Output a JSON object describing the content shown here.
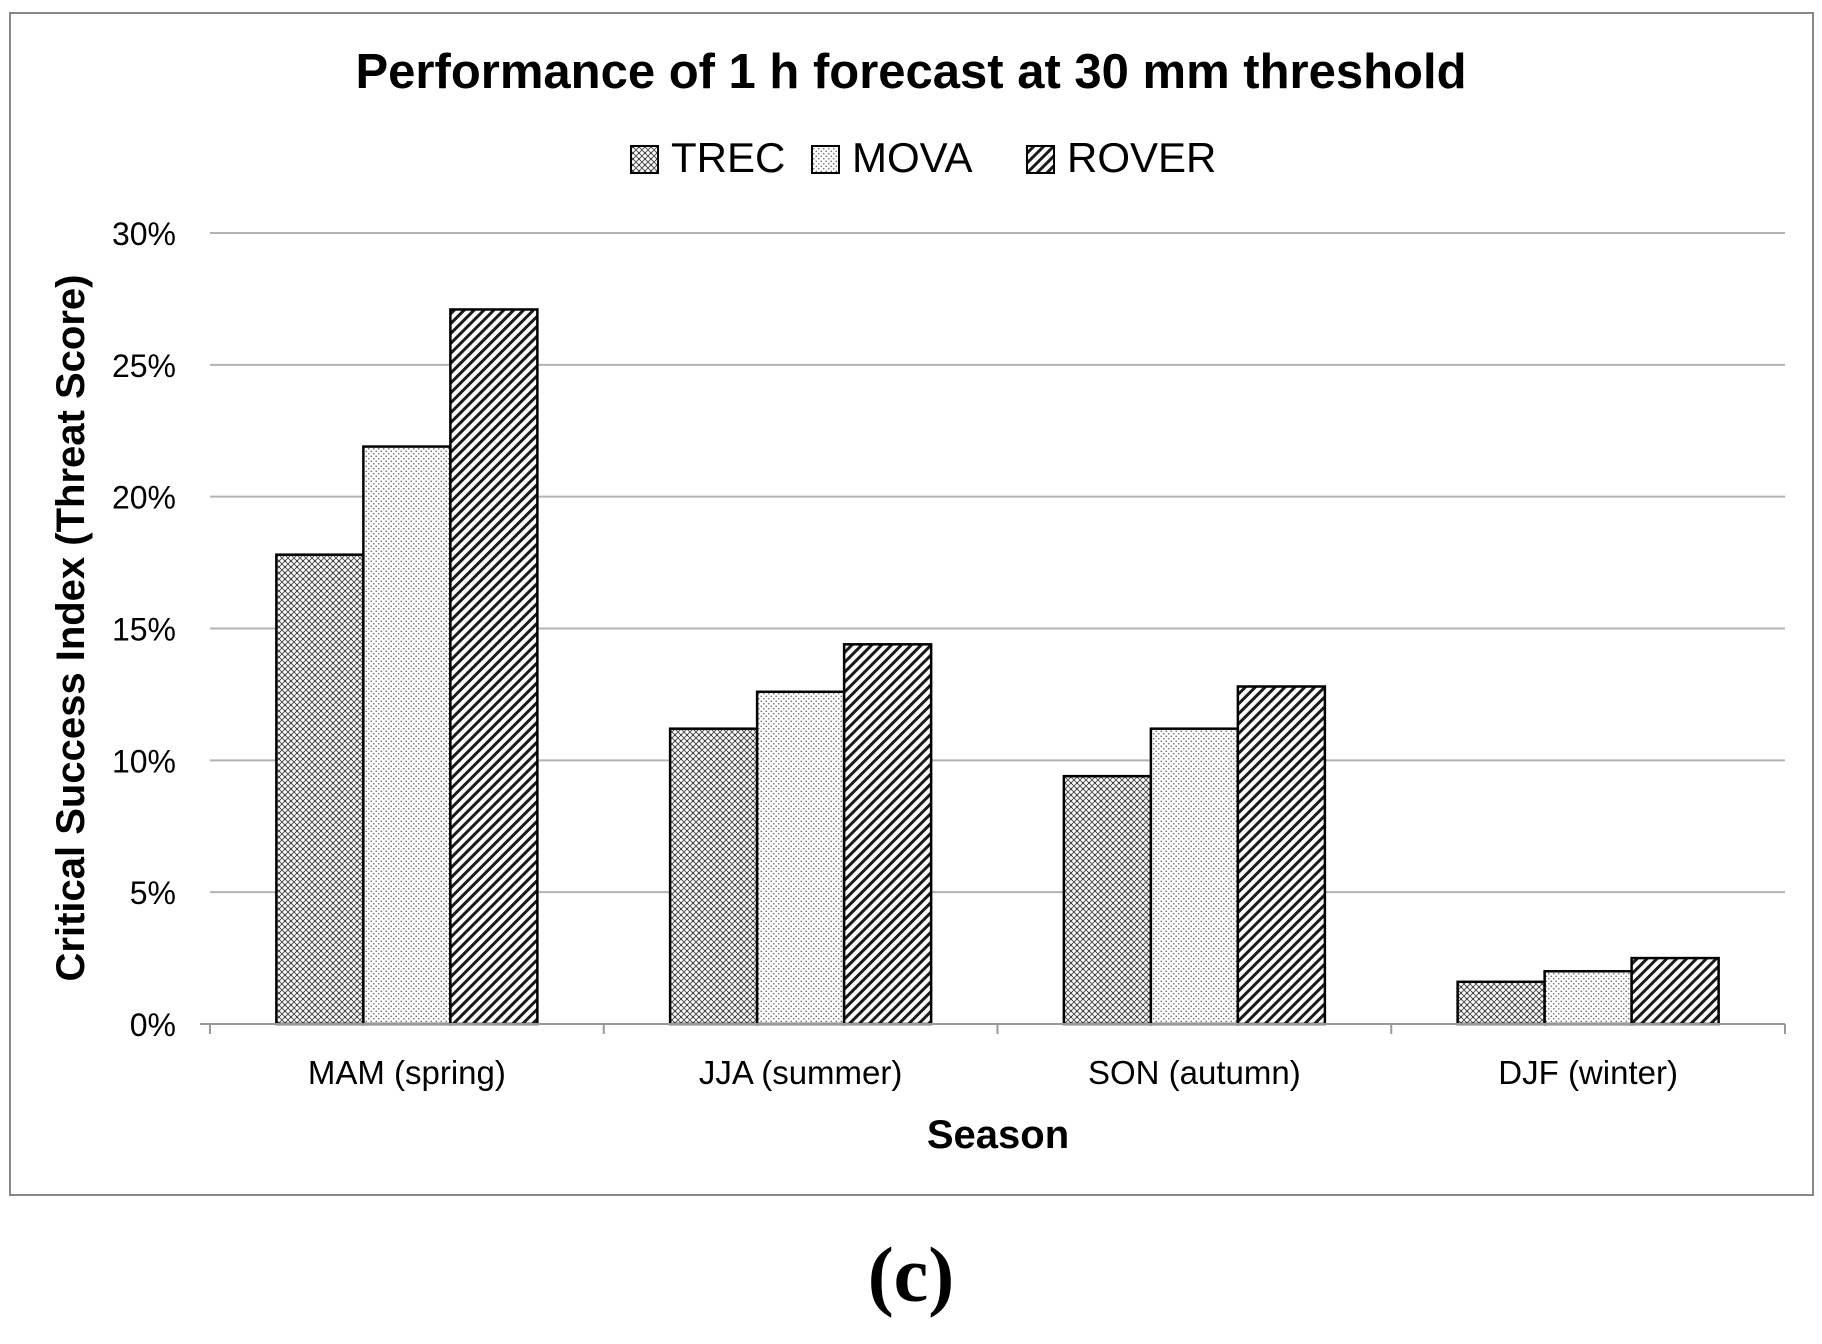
{
  "chart_data": {
    "type": "bar",
    "title": "Performance of 1 h forecast at 30 mm threshold",
    "xlabel": "Season",
    "ylabel": "Critical Success Index (Threat Score)",
    "categories": [
      "MAM (spring)",
      "JJA (summer)",
      "SON (autumn)",
      "DJF (winter)"
    ],
    "series": [
      {
        "name": "TREC",
        "values": [
          17.8,
          11.2,
          9.4,
          1.6
        ],
        "pattern": "crosshatch-dots"
      },
      {
        "name": "MOVA",
        "values": [
          21.9,
          12.6,
          11.2,
          2.0
        ],
        "pattern": "fine-dots"
      },
      {
        "name": "ROVER",
        "values": [
          27.1,
          14.4,
          12.8,
          2.5
        ],
        "pattern": "diagonal-lines"
      }
    ],
    "yticks": [
      "0%",
      "5%",
      "10%",
      "15%",
      "20%",
      "25%",
      "30%"
    ],
    "ylim": [
      0,
      30
    ],
    "grid": true,
    "legend": "top-center"
  },
  "panel_label": "(c)",
  "colors": {
    "bar_stroke": "#000000",
    "grid": "#b3b3b3",
    "frame": "#888888",
    "text": "#000000"
  }
}
